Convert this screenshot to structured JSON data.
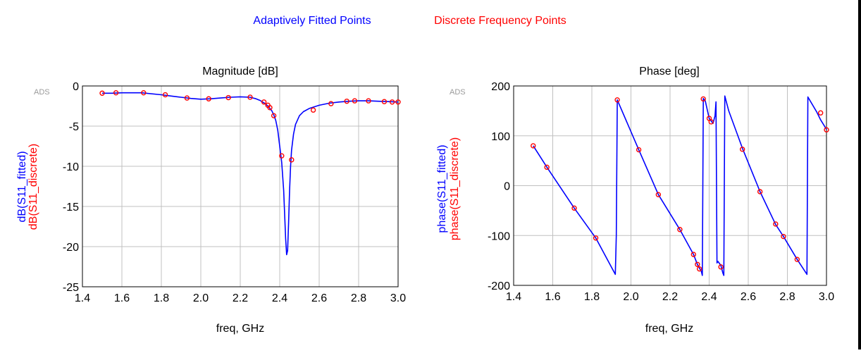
{
  "legend": {
    "fitted": "Adaptively Fitted Points",
    "discrete": "Discrete Frequency Points"
  },
  "colors": {
    "fitted": "#0000ff",
    "discrete": "#ff0000",
    "grid": "#c0c0c0",
    "watermark": "#9a9a9a"
  },
  "chart_data": [
    {
      "type": "line",
      "title": "Magnitude [dB]",
      "watermark": "ADS",
      "xlabel": "freq, GHz",
      "ylabel_fitted": "dB(S11_fitted)",
      "ylabel_discrete": "dB(S11_discrete)",
      "xlim": [
        1.4,
        3.0
      ],
      "ylim": [
        -25,
        0
      ],
      "xticks": [
        "1.4",
        "1.6",
        "1.8",
        "2.0",
        "2.2",
        "2.4",
        "2.6",
        "2.8",
        "3.0"
      ],
      "yticks": [
        "0",
        "-5",
        "-10",
        "-15",
        "-20",
        "-25"
      ],
      "series": [
        {
          "role": "fitted",
          "x": [
            1.5,
            1.55,
            1.6,
            1.7,
            1.8,
            1.85,
            1.9,
            1.95,
            2.0,
            2.05,
            2.1,
            2.15,
            2.2,
            2.25,
            2.28,
            2.3,
            2.32,
            2.34,
            2.36,
            2.37,
            2.38,
            2.39,
            2.4,
            2.41,
            2.42,
            2.425,
            2.43,
            2.435,
            2.44,
            2.445,
            2.45,
            2.455,
            2.46,
            2.47,
            2.48,
            2.5,
            2.52,
            2.55,
            2.6,
            2.65,
            2.7,
            2.75,
            2.8,
            2.85,
            2.9,
            2.95,
            3.0
          ],
          "y": [
            -0.9,
            -0.9,
            -0.85,
            -0.85,
            -1.1,
            -1.25,
            -1.4,
            -1.55,
            -1.65,
            -1.6,
            -1.5,
            -1.4,
            -1.35,
            -1.4,
            -1.6,
            -1.8,
            -2.1,
            -2.5,
            -3.1,
            -3.6,
            -4.3,
            -5.5,
            -7.5,
            -9.5,
            -13,
            -16,
            -19,
            -21,
            -20.5,
            -17,
            -13,
            -10,
            -8,
            -6,
            -4.8,
            -3.7,
            -3.2,
            -2.8,
            -2.4,
            -2.15,
            -2.0,
            -1.9,
            -1.85,
            -1.85,
            -1.9,
            -1.95,
            -2.0
          ]
        },
        {
          "role": "discrete",
          "x": [
            1.5,
            1.57,
            1.71,
            1.82,
            1.93,
            2.04,
            2.14,
            2.25,
            2.32,
            2.34,
            2.35,
            2.37,
            2.41,
            2.46,
            2.57,
            2.66,
            2.74,
            2.78,
            2.85,
            2.93,
            2.97,
            3.0
          ],
          "y": [
            -0.9,
            -0.85,
            -0.85,
            -1.1,
            -1.5,
            -1.6,
            -1.45,
            -1.4,
            -2.0,
            -2.4,
            -2.7,
            -3.7,
            -8.7,
            -9.2,
            -3.0,
            -2.2,
            -1.9,
            -1.85,
            -1.85,
            -1.95,
            -2.0,
            -2.0
          ]
        }
      ]
    },
    {
      "type": "line",
      "title": "Phase [deg]",
      "watermark": "ADS",
      "xlabel": "freq, GHz",
      "ylabel_fitted": "phase(S11_fitted)",
      "ylabel_discrete": "phase(S11_discrete)",
      "xlim": [
        1.4,
        3.0
      ],
      "ylim": [
        -200,
        200
      ],
      "xticks": [
        "1.4",
        "1.6",
        "1.8",
        "2.0",
        "2.2",
        "2.4",
        "2.6",
        "2.8",
        "3.0"
      ],
      "yticks": [
        "200",
        "100",
        "0",
        "-100",
        "-200"
      ],
      "series": [
        {
          "role": "fitted",
          "x": [
            1.5,
            1.57,
            1.71,
            1.82,
            1.92,
            1.925,
            1.93,
            2.04,
            2.14,
            2.25,
            2.32,
            2.34,
            2.36,
            2.365,
            2.37,
            2.38,
            2.4,
            2.42,
            2.43,
            2.435,
            2.44,
            2.445,
            2.46,
            2.47,
            2.475,
            2.48,
            2.5,
            2.57,
            2.66,
            2.74,
            2.78,
            2.85,
            2.9,
            2.905,
            2.95,
            2.97,
            3.0
          ],
          "y": [
            80,
            37,
            -45,
            -105,
            -178,
            -100,
            172,
            72,
            -18,
            -88,
            -138,
            -158,
            -172,
            -180,
            175,
            170,
            135,
            125,
            140,
            168,
            -155,
            -152,
            -160,
            -175,
            -180,
            180,
            150,
            75,
            -12,
            -78,
            -102,
            -148,
            -178,
            178,
            148,
            132,
            113
          ]
        },
        {
          "role": "discrete",
          "x": [
            1.5,
            1.57,
            1.71,
            1.82,
            1.93,
            2.04,
            2.14,
            2.25,
            2.32,
            2.34,
            2.35,
            2.37,
            2.4,
            2.41,
            2.46,
            2.57,
            2.66,
            2.74,
            2.78,
            2.85,
            2.97,
            3.0
          ],
          "y": [
            80,
            37,
            -45,
            -105,
            172,
            72,
            -18,
            -88,
            -138,
            -158,
            -167,
            174,
            135,
            128,
            -163,
            73,
            -12,
            -77,
            -102,
            -148,
            146,
            112
          ]
        }
      ]
    }
  ]
}
